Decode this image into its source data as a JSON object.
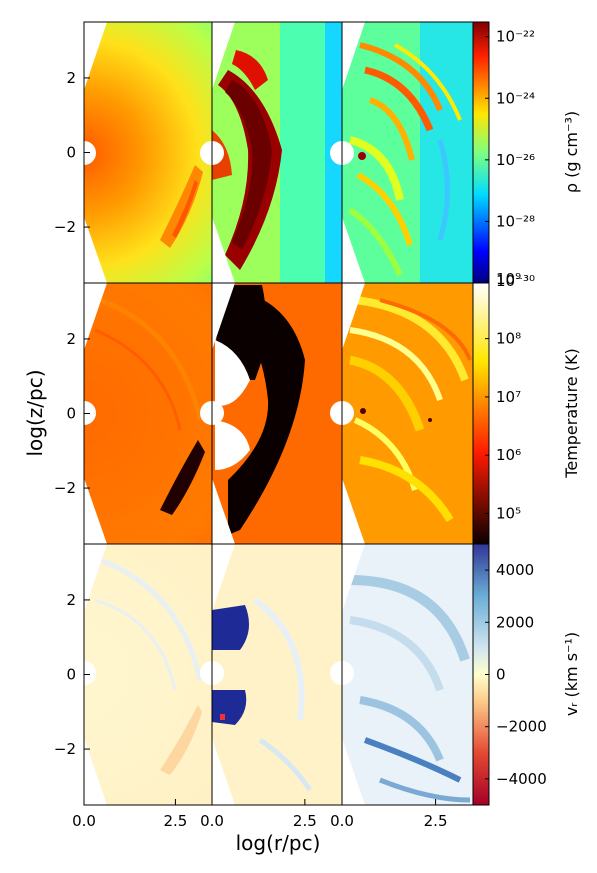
{
  "figure": {
    "x_label": "log(r/pc)",
    "y_label": "log(z/pc)"
  },
  "chart_data": {
    "type": "heatmap",
    "x_axis": {
      "label": "log(r/pc)",
      "range": [
        0,
        3.5
      ],
      "ticks": [
        0,
        2.5
      ],
      "tick_labels": [
        "0.0",
        "2.5"
      ]
    },
    "y_axis": {
      "label": "log(z/pc)",
      "range": [
        -3.5,
        3.5
      ],
      "ticks": [
        2,
        0,
        -2
      ],
      "tick_labels": [
        "2",
        "0",
        "−2"
      ]
    },
    "rows": [
      {
        "quantity": "density",
        "colorbar_label": "ρ (g cm⁻³)",
        "colormap": "jet",
        "scale": "log",
        "range": [
          1e-30,
          3e-22
        ],
        "ticks": [
          -22,
          -24,
          -26,
          -28,
          -30
        ],
        "tick_labels": [
          "10⁻²²",
          "10⁻²⁴",
          "10⁻²⁶",
          "10⁻²⁸",
          "10⁻³⁰"
        ],
        "top_label": "10⁹"
      },
      {
        "quantity": "temperature",
        "colorbar_label": "Temperature (K)",
        "colormap": "hot",
        "scale": "log",
        "range": [
          30000,
          900000000
        ],
        "ticks": [
          8,
          7,
          6,
          5
        ],
        "tick_labels": [
          "10⁸",
          "10⁷",
          "10⁶",
          "10⁵"
        ]
      },
      {
        "quantity": "radial_velocity",
        "colorbar_label": "vᵣ (km s⁻¹)",
        "colormap": "RdYlBu",
        "scale": "linear",
        "range": [
          -5000,
          5000
        ],
        "ticks": [
          4000,
          2000,
          0,
          -2000,
          -4000
        ],
        "tick_labels": [
          "4000",
          "2000",
          "0",
          "−2000",
          "−4000"
        ]
      }
    ],
    "columns": 3,
    "grid": false
  }
}
